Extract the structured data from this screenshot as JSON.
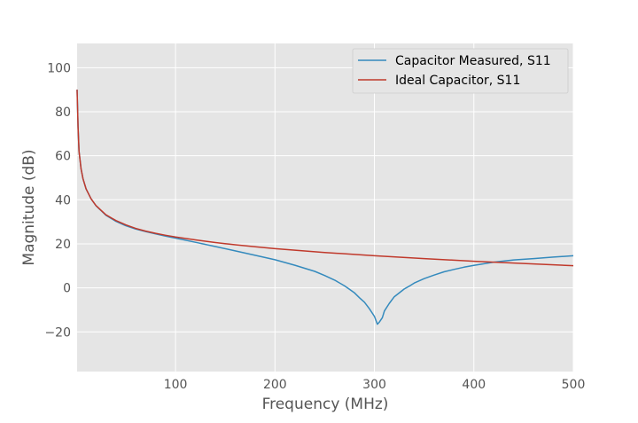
{
  "chart_data": {
    "type": "line",
    "title": "",
    "xlabel": "Frequency (MHz)",
    "ylabel": "Magnitude (dB)",
    "xlim": [
      1,
      500
    ],
    "ylim": [
      -38,
      111
    ],
    "xticks": [
      100,
      200,
      300,
      400,
      500
    ],
    "yticks": [
      -20,
      0,
      20,
      40,
      60,
      80,
      100
    ],
    "xtick_labels": [
      "100",
      "200",
      "300",
      "400",
      "500"
    ],
    "ytick_labels": [
      "−20",
      "0",
      "20",
      "40",
      "60",
      "80",
      "100"
    ],
    "grid": true,
    "legend_position": "top-right",
    "colors": {
      "background": "#e5e5e5",
      "grid": "#ffffff"
    },
    "series": [
      {
        "name": "Capacitor Measured, S11",
        "color": "#348abd",
        "x": [
          1,
          2,
          3,
          5,
          7,
          10,
          15,
          20,
          30,
          40,
          50,
          60,
          70,
          80,
          90,
          100,
          120,
          140,
          160,
          180,
          200,
          220,
          240,
          250,
          260,
          270,
          280,
          285,
          290,
          295,
          300,
          303,
          305,
          308,
          310,
          315,
          320,
          330,
          335,
          340,
          350,
          360,
          370,
          380,
          390,
          400,
          420,
          440,
          460,
          480,
          500
        ],
        "y": [
          90,
          73,
          62,
          54,
          49.5,
          45,
          40.5,
          37.3,
          33,
          30.2,
          28.2,
          26.7,
          25.6,
          24.5,
          23.5,
          22.6,
          20.7,
          18.8,
          16.8,
          14.8,
          12.8,
          10.3,
          7.5,
          5.6,
          3.5,
          0.9,
          -2.3,
          -4.5,
          -6.5,
          -9.5,
          -13,
          -16.5,
          -15.5,
          -13.5,
          -10.5,
          -7,
          -4,
          -0.5,
          0.8,
          2.2,
          4.2,
          5.8,
          7.3,
          8.4,
          9.4,
          10.2,
          11.7,
          12.7,
          13.3,
          14,
          14.6
        ]
      },
      {
        "name": "Ideal Capacitor, S11",
        "color": "#c0392b",
        "x": [
          1,
          2,
          3,
          5,
          7,
          10,
          15,
          20,
          30,
          40,
          50,
          60,
          70,
          80,
          90,
          100,
          120,
          140,
          160,
          180,
          200,
          250,
          300,
          350,
          400,
          450,
          500
        ],
        "y": [
          90,
          73,
          62,
          54,
          49.5,
          45,
          40.5,
          37.4,
          33.2,
          30.6,
          28.6,
          27,
          25.8,
          24.8,
          23.9,
          23.1,
          21.8,
          20.6,
          19.6,
          18.7,
          17.8,
          16.1,
          14.6,
          13.3,
          12.1,
          11.1,
          10.1
        ]
      }
    ]
  }
}
